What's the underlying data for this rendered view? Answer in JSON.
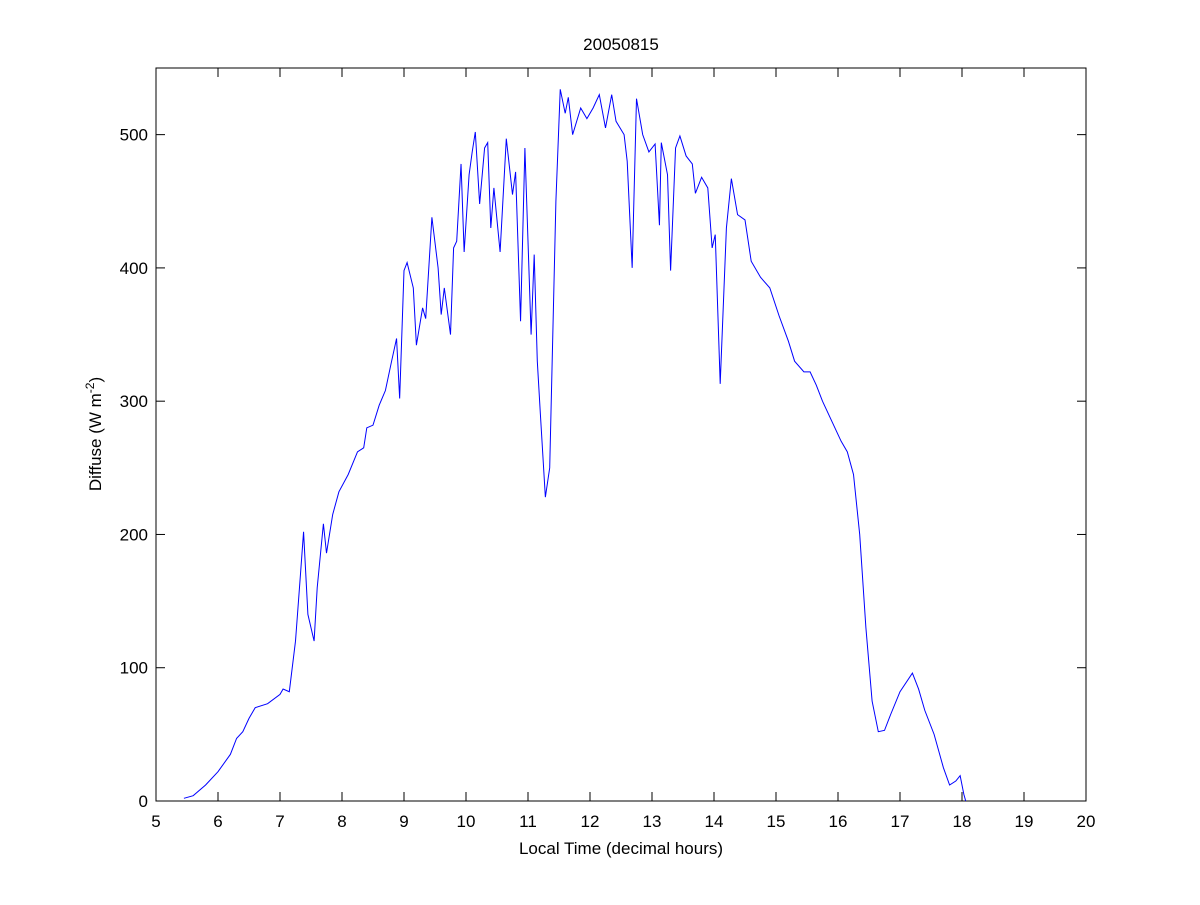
{
  "chart_data": {
    "type": "line",
    "title": "20050815",
    "xlabel": "Local Time (decimal hours)",
    "ylabel": [
      "Diffuse (W m",
      "-2",
      ")"
    ],
    "xlim": [
      5,
      20
    ],
    "xticks": [
      5,
      6,
      7,
      8,
      9,
      10,
      11,
      12,
      13,
      14,
      15,
      16,
      17,
      18,
      19,
      20
    ],
    "ylim": [
      0,
      550
    ],
    "yticks": [
      0,
      100,
      200,
      300,
      400,
      500
    ],
    "grid": false,
    "series": [
      {
        "name": "Diffuse",
        "color": "#0000ff",
        "x": [
          5.45,
          5.6,
          5.8,
          6.0,
          6.2,
          6.3,
          6.4,
          6.5,
          6.6,
          6.8,
          7.0,
          7.05,
          7.15,
          7.25,
          7.33,
          7.38,
          7.45,
          7.55,
          7.6,
          7.7,
          7.75,
          7.85,
          7.95,
          8.1,
          8.25,
          8.35,
          8.4,
          8.5,
          8.6,
          8.7,
          8.8,
          8.88,
          8.93,
          9.0,
          9.05,
          9.15,
          9.2,
          9.3,
          9.35,
          9.45,
          9.55,
          9.6,
          9.65,
          9.75,
          9.8,
          9.85,
          9.92,
          9.97,
          10.05,
          10.1,
          10.15,
          10.22,
          10.3,
          10.35,
          10.4,
          10.45,
          10.55,
          10.65,
          10.75,
          10.8,
          10.88,
          10.95,
          11.0,
          11.05,
          11.1,
          11.15,
          11.2,
          11.28,
          11.35,
          11.45,
          11.52,
          11.6,
          11.65,
          11.72,
          11.85,
          11.95,
          12.05,
          12.15,
          12.25,
          12.35,
          12.42,
          12.55,
          12.6,
          12.68,
          12.75,
          12.85,
          12.95,
          13.05,
          13.12,
          13.15,
          13.25,
          13.3,
          13.38,
          13.45,
          13.55,
          13.65,
          13.7,
          13.8,
          13.9,
          13.97,
          14.02,
          14.1,
          14.2,
          14.28,
          14.38,
          14.5,
          14.6,
          14.75,
          14.9,
          15.05,
          15.2,
          15.3,
          15.45,
          15.55,
          15.65,
          15.75,
          15.9,
          16.05,
          16.15,
          16.25,
          16.35,
          16.45,
          16.55,
          16.65,
          16.75,
          16.85,
          17.0,
          17.2,
          17.3,
          17.4,
          17.55,
          17.7,
          17.8,
          17.9,
          17.97,
          18.03,
          18.06
        ],
        "values": [
          2,
          4,
          12,
          22,
          35,
          47,
          52,
          62,
          70,
          73,
          80,
          84,
          82,
          120,
          170,
          202,
          140,
          120,
          160,
          208,
          186,
          215,
          232,
          245,
          262,
          265,
          280,
          282,
          297,
          308,
          330,
          347,
          302,
          398,
          404,
          385,
          342,
          370,
          362,
          438,
          400,
          365,
          385,
          350,
          415,
          420,
          478,
          412,
          470,
          487,
          502,
          448,
          490,
          494,
          430,
          460,
          412,
          497,
          455,
          472,
          360,
          490,
          420,
          350,
          410,
          330,
          290,
          228,
          250,
          450,
          534,
          516,
          528,
          500,
          520,
          512,
          520,
          530,
          505,
          530,
          510,
          500,
          480,
          400,
          527,
          500,
          487,
          493,
          432,
          494,
          470,
          398,
          490,
          499,
          484,
          478,
          456,
          468,
          460,
          415,
          425,
          313,
          430,
          467,
          440,
          436,
          405,
          393,
          385,
          364,
          345,
          330,
          322,
          322,
          312,
          300,
          285,
          270,
          262,
          245,
          200,
          130,
          75,
          52,
          53,
          65,
          82,
          96,
          84,
          68,
          50,
          25,
          12,
          15,
          19,
          5,
          0
        ]
      }
    ]
  }
}
